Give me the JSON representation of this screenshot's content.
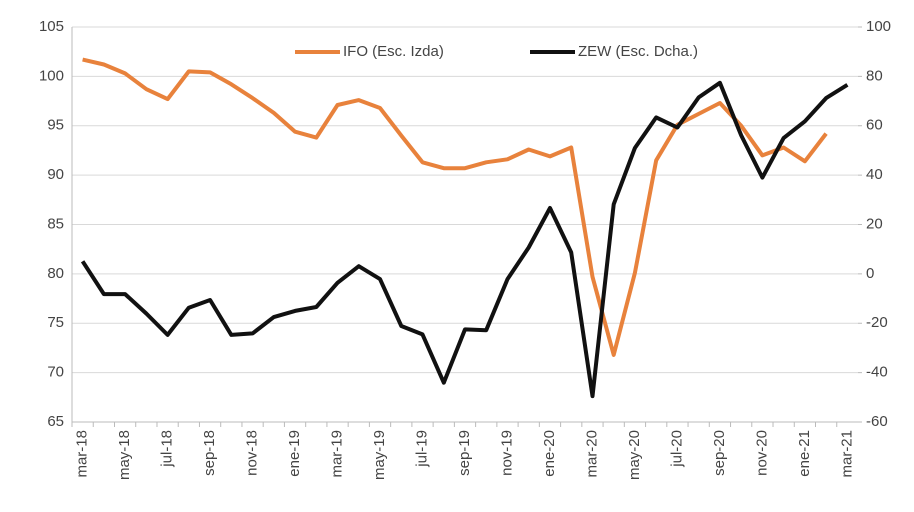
{
  "chart_data": {
    "type": "line",
    "categories": [
      "mar-18",
      null,
      "may-18",
      null,
      "jul-18",
      null,
      "sep-18",
      null,
      "nov-18",
      null,
      "ene-19",
      null,
      "mar-19",
      null,
      "may-19",
      null,
      "jul-19",
      null,
      "sep-19",
      null,
      "nov-19",
      null,
      "ene-20",
      null,
      "mar-20",
      null,
      "may-20",
      null,
      "jul-20",
      null,
      "sep-20",
      null,
      "nov-20",
      null,
      "ene-21",
      null,
      "mar-21"
    ],
    "series": [
      {
        "name": "IFO (Esc. Izda)",
        "color": "#e8823c",
        "axis": "y",
        "values": [
          101.7,
          101.2,
          100.3,
          98.7,
          97.7,
          100.5,
          100.4,
          99.2,
          97.8,
          96.3,
          94.4,
          93.8,
          97.1,
          97.6,
          96.8,
          94.0,
          91.3,
          90.7,
          90.7,
          91.3,
          91.6,
          92.6,
          91.9,
          92.8,
          79.7,
          71.8,
          80.1,
          91.5,
          95.1,
          96.2,
          97.3,
          95.0,
          92.0,
          92.8,
          91.4,
          94.2,
          null
        ]
      },
      {
        "name": "ZEW (Esc. Dcha.)",
        "color": "#111111",
        "axis": "y2",
        "values": [
          5.1,
          -8.2,
          -8.2,
          -16.1,
          -24.7,
          -13.7,
          -10.6,
          -24.7,
          -24.1,
          -17.5,
          -15.0,
          -13.4,
          -3.6,
          3.1,
          -2.1,
          -21.1,
          -24.5,
          -44.1,
          -22.5,
          -22.8,
          -2.1,
          10.7,
          26.7,
          8.7,
          -49.5,
          28.2,
          51.0,
          63.4,
          59.3,
          71.5,
          77.4,
          56.1,
          39.0,
          55.0,
          61.8,
          71.2,
          76.6
        ]
      }
    ],
    "ylim": [
      65,
      105
    ],
    "yticks": [
      65,
      70,
      75,
      80,
      85,
      90,
      95,
      100,
      105
    ],
    "y2lim": [
      -60,
      100
    ],
    "y2ticks": [
      -60,
      -40,
      -20,
      0,
      20,
      40,
      60,
      80,
      100
    ],
    "grid": true,
    "legend": "top"
  }
}
